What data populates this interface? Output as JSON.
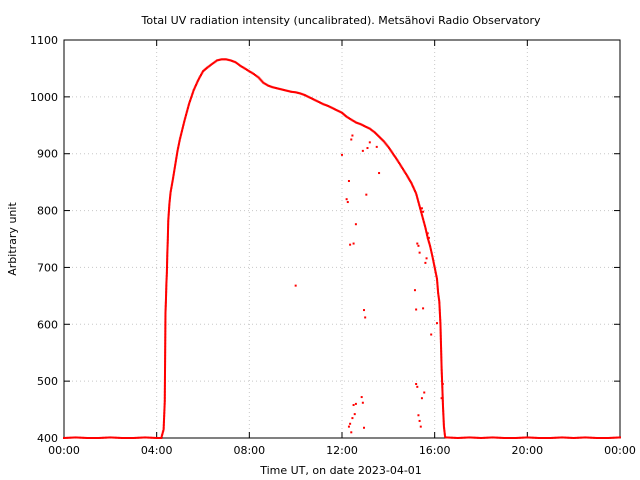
{
  "chart_data": {
    "type": "scatter",
    "title": "Total UV radiation intensity (uncalibrated). Metsähovi Radio Observatory",
    "xlabel": "Time UT, on date 2023-04-01",
    "ylabel": "Arbitrary unit",
    "xlim": [
      "00:00",
      "24:00"
    ],
    "ylim": [
      400,
      1100
    ],
    "x_ticks": [
      "00:00",
      "04:00",
      "08:00",
      "12:00",
      "16:00",
      "20:00",
      "00:00"
    ],
    "y_ticks": [
      400,
      500,
      600,
      700,
      800,
      900,
      1000,
      1100
    ],
    "grid": true,
    "color": "#ff0000",
    "x_unit": "hours UT",
    "series": [
      {
        "points": [
          [
            0.0,
            400
          ],
          [
            0.5,
            401
          ],
          [
            1.0,
            400
          ],
          [
            1.5,
            400
          ],
          [
            2.0,
            401
          ],
          [
            2.5,
            400
          ],
          [
            3.0,
            400
          ],
          [
            3.5,
            401
          ],
          [
            4.0,
            400
          ],
          [
            4.2,
            400
          ],
          [
            4.3,
            415
          ],
          [
            4.35,
            465
          ],
          [
            4.38,
            620
          ],
          [
            4.4,
            642
          ],
          [
            4.42,
            672
          ],
          [
            4.44,
            690
          ],
          [
            4.46,
            725
          ],
          [
            4.48,
            748
          ],
          [
            4.5,
            782
          ],
          [
            4.55,
            812
          ],
          [
            4.6,
            832
          ],
          [
            4.7,
            855
          ],
          [
            4.8,
            880
          ],
          [
            4.9,
            905
          ],
          [
            5.0,
            925
          ],
          [
            5.2,
            958
          ],
          [
            5.4,
            988
          ],
          [
            5.6,
            1012
          ],
          [
            5.8,
            1030
          ],
          [
            6.0,
            1045
          ],
          [
            6.2,
            1052
          ],
          [
            6.4,
            1058
          ],
          [
            6.6,
            1064
          ],
          [
            6.8,
            1066
          ],
          [
            7.0,
            1066
          ],
          [
            7.2,
            1064
          ],
          [
            7.4,
            1061
          ],
          [
            7.6,
            1055
          ],
          [
            7.8,
            1050
          ],
          [
            8.0,
            1045
          ],
          [
            8.2,
            1040
          ],
          [
            8.4,
            1034
          ],
          [
            8.6,
            1025
          ],
          [
            8.8,
            1020
          ],
          [
            9.0,
            1017
          ],
          [
            9.2,
            1015
          ],
          [
            9.4,
            1013
          ],
          [
            9.6,
            1011
          ],
          [
            9.8,
            1009
          ],
          [
            10.0,
            1008
          ],
          [
            10.2,
            1006
          ],
          [
            10.4,
            1003
          ],
          [
            10.6,
            999
          ],
          [
            10.8,
            995
          ],
          [
            11.0,
            991
          ],
          [
            11.2,
            987
          ],
          [
            11.4,
            984
          ],
          [
            11.6,
            980
          ],
          [
            11.8,
            976
          ],
          [
            12.0,
            972
          ],
          [
            12.2,
            965
          ],
          [
            12.4,
            960
          ],
          [
            12.6,
            955
          ],
          [
            12.8,
            952
          ],
          [
            13.0,
            948
          ],
          [
            13.2,
            944
          ],
          [
            13.4,
            938
          ],
          [
            13.6,
            930
          ],
          [
            13.8,
            922
          ],
          [
            14.0,
            912
          ],
          [
            14.2,
            900
          ],
          [
            14.4,
            888
          ],
          [
            14.6,
            875
          ],
          [
            14.8,
            862
          ],
          [
            15.0,
            848
          ],
          [
            15.2,
            830
          ],
          [
            15.3,
            815
          ],
          [
            15.4,
            800
          ],
          [
            15.5,
            785
          ],
          [
            15.6,
            770
          ],
          [
            15.7,
            752
          ],
          [
            15.8,
            738
          ],
          [
            15.9,
            720
          ],
          [
            16.0,
            700
          ],
          [
            16.1,
            680
          ],
          [
            16.15,
            655
          ],
          [
            16.2,
            640
          ],
          [
            16.25,
            600
          ],
          [
            16.3,
            522
          ],
          [
            16.33,
            490
          ],
          [
            16.36,
            455
          ],
          [
            16.4,
            420
          ],
          [
            16.45,
            402
          ],
          [
            16.5,
            401
          ],
          [
            17.0,
            400
          ],
          [
            17.5,
            401
          ],
          [
            18.0,
            400
          ],
          [
            18.5,
            401
          ],
          [
            19.0,
            400
          ],
          [
            19.5,
            400
          ],
          [
            20.0,
            401
          ],
          [
            20.5,
            400
          ],
          [
            21.0,
            400
          ],
          [
            21.5,
            401
          ],
          [
            22.0,
            400
          ],
          [
            22.5,
            401
          ],
          [
            23.0,
            400
          ],
          [
            23.5,
            400
          ],
          [
            24.0,
            401
          ],
          [
            10.0,
            668
          ],
          [
            12.0,
            898
          ],
          [
            12.2,
            820
          ],
          [
            12.25,
            815
          ],
          [
            12.3,
            852
          ],
          [
            12.35,
            740
          ],
          [
            12.4,
            925
          ],
          [
            12.45,
            932
          ],
          [
            12.5,
            742
          ],
          [
            12.6,
            776
          ],
          [
            12.3,
            420
          ],
          [
            12.35,
            425
          ],
          [
            12.4,
            410
          ],
          [
            12.45,
            435
          ],
          [
            12.5,
            458
          ],
          [
            12.55,
            442
          ],
          [
            12.6,
            460
          ],
          [
            12.9,
            905
          ],
          [
            12.95,
            625
          ],
          [
            13.0,
            612
          ],
          [
            13.05,
            828
          ],
          [
            13.1,
            910
          ],
          [
            12.85,
            472
          ],
          [
            12.9,
            462
          ],
          [
            12.95,
            418
          ],
          [
            13.2,
            920
          ],
          [
            13.5,
            912
          ],
          [
            13.6,
            866
          ],
          [
            15.15,
            660
          ],
          [
            15.2,
            626
          ],
          [
            15.25,
            742
          ],
          [
            15.3,
            738
          ],
          [
            15.35,
            726
          ],
          [
            15.2,
            495
          ],
          [
            15.25,
            490
          ],
          [
            15.3,
            440
          ],
          [
            15.35,
            430
          ],
          [
            15.4,
            420
          ],
          [
            15.45,
            470
          ],
          [
            15.55,
            480
          ],
          [
            15.6,
            708
          ],
          [
            15.65,
            716
          ],
          [
            15.7,
            760
          ],
          [
            15.75,
            752
          ],
          [
            15.85,
            582
          ],
          [
            15.5,
            628
          ],
          [
            16.1,
            602
          ],
          [
            16.3,
            470
          ],
          [
            16.35,
            495
          ],
          [
            15.45,
            804
          ],
          [
            15.5,
            798
          ]
        ]
      }
    ]
  }
}
